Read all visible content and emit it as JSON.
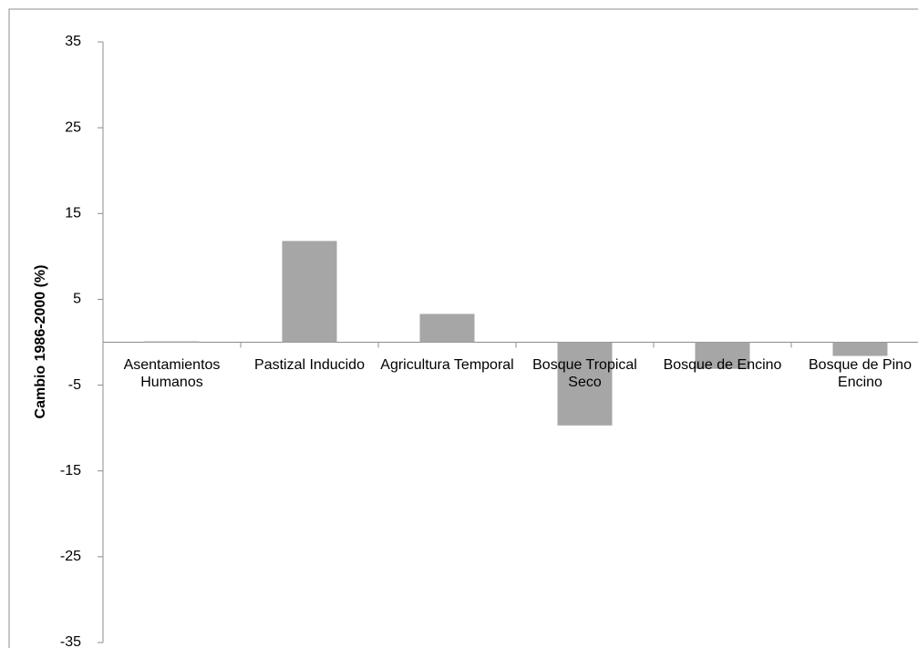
{
  "chart_data": {
    "type": "bar",
    "y_label": "Cambio 1986-2000 (%)",
    "categories": [
      "Asentamientos Humanos",
      "Pastizal Inducido",
      "Agricultura Temporal",
      "Bosque Tropical Seco",
      "Bosque de Encino",
      "Bosque de Pino Encino"
    ],
    "values": [
      0.1,
      11.8,
      3.3,
      -9.7,
      -3.1,
      -1.6
    ],
    "color": "#a6a6a6",
    "ylim": [
      -35,
      35
    ],
    "yticks": [
      -35,
      -25,
      -15,
      -5,
      5,
      15,
      25,
      35
    ]
  }
}
